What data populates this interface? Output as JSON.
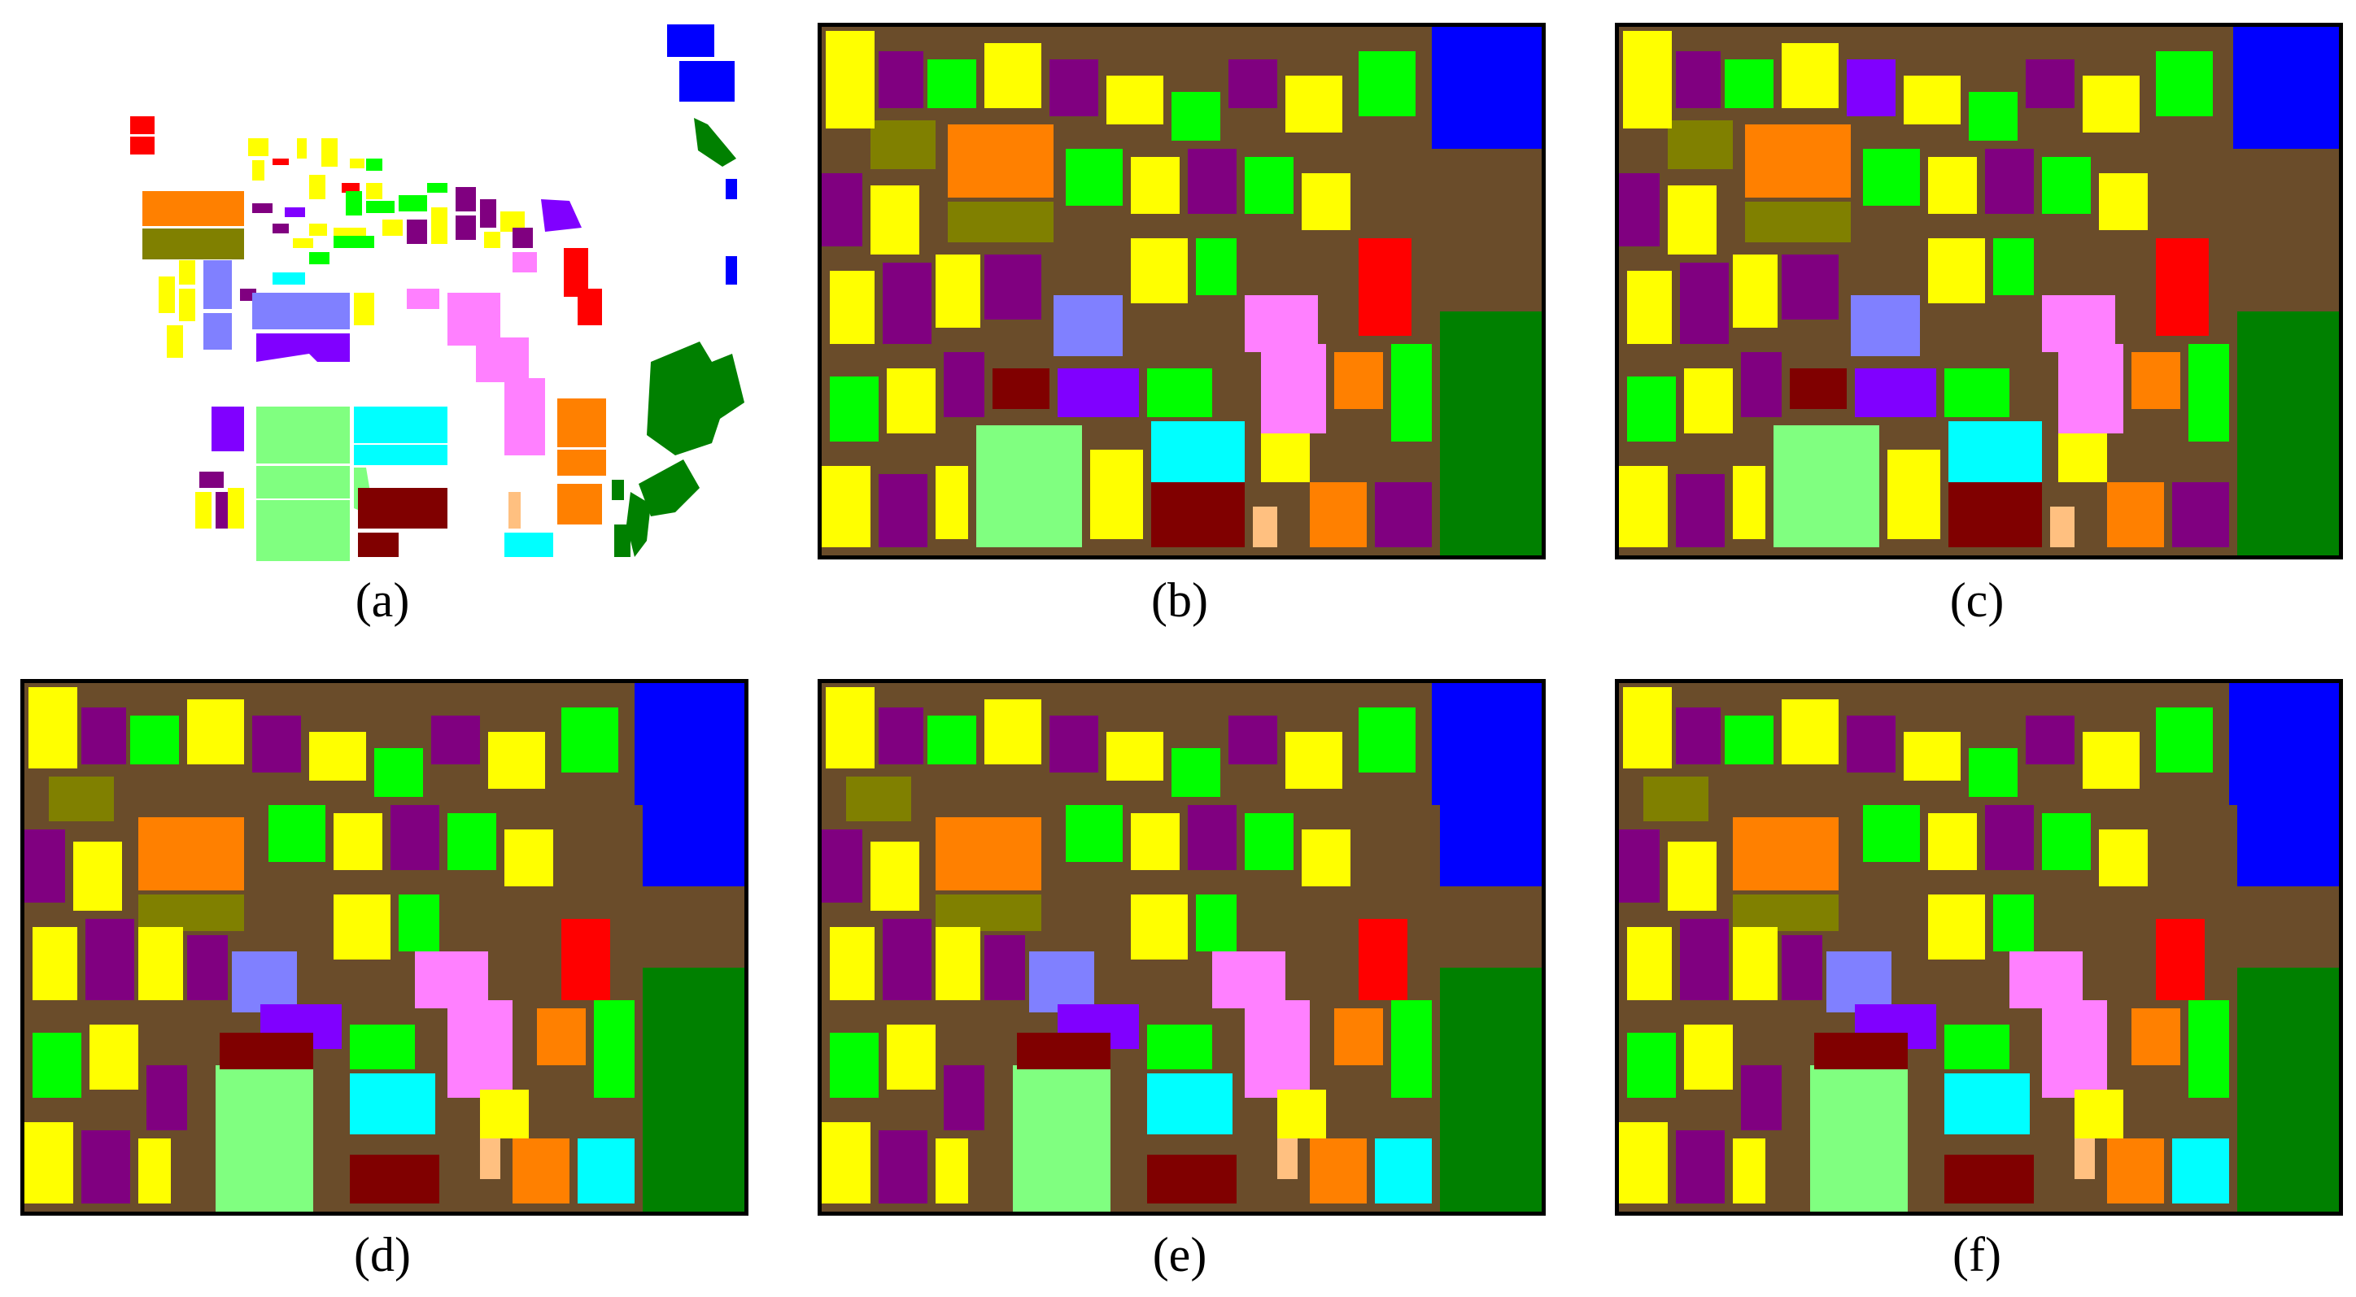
{
  "panels": [
    {
      "id": "a",
      "caption": "(a)",
      "kind": "ground-truth"
    },
    {
      "id": "b",
      "caption": "(b)",
      "kind": "classification-map"
    },
    {
      "id": "c",
      "caption": "(c)",
      "kind": "classification-map"
    },
    {
      "id": "d",
      "caption": "(d)",
      "kind": "classification-map"
    },
    {
      "id": "e",
      "caption": "(e)",
      "kind": "classification-map"
    },
    {
      "id": "f",
      "caption": "(f)",
      "kind": "classification-map"
    }
  ],
  "class_colors": {
    "red": "#ff0000",
    "orange": "#ff8000",
    "olive": "#808000",
    "yellow": "#ffff00",
    "green": "#00ff00",
    "dark_green": "#008000",
    "light_green": "#80ff80",
    "cyan": "#00ffff",
    "blue": "#0000ff",
    "periwinkle": "#8080ff",
    "violet": "#8000ff",
    "purple": "#800080",
    "pink": "#ff80ff",
    "maroon": "#800000",
    "tan": "#ffc080",
    "frame": "#000000"
  }
}
